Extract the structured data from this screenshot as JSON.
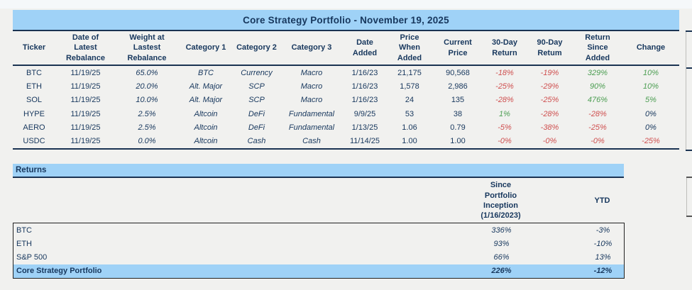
{
  "palette": {
    "page_bg": "#f1f1ef",
    "header_blue": "#9fd2f7",
    "navy_text": "#17375d",
    "negative_red": "#cf5050",
    "positive_green": "#4d9e53",
    "border_dark": "#1a3352",
    "box_border": "#222222"
  },
  "portfolio_table": {
    "title": "Core Strategy Portfolio - November 19, 2025",
    "columns": [
      "Ticker",
      "Date of\nLatest\nRebalance",
      "Weight at\nLastest\nRebalance",
      "Category 1",
      "Category 2",
      "Category 3",
      "Date\nAdded",
      "Price\nWhen\nAdded",
      "Current\nPrice",
      "30-Day\nReturn",
      "90-Day\nRetum",
      "Return\nSince\nAdded",
      "Change"
    ],
    "rows": [
      {
        "values": [
          "BTC",
          "11/19/25",
          "65.0%",
          "BTC",
          "Currency",
          "Macro",
          "1/16/23",
          "21,175",
          "90,568",
          "-18%",
          "-19%",
          "329%",
          "10%"
        ],
        "tones": [
          "",
          "",
          "",
          "",
          "",
          "",
          "",
          "",
          "",
          "neg",
          "neg",
          "pos",
          "pos"
        ]
      },
      {
        "values": [
          "ETH",
          "11/19/25",
          "20.0%",
          "Alt. Major",
          "SCP",
          "Macro",
          "1/16/23",
          "1,578",
          "2,986",
          "-25%",
          "-29%",
          "90%",
          "10%"
        ],
        "tones": [
          "",
          "",
          "",
          "",
          "",
          "",
          "",
          "",
          "",
          "neg",
          "neg",
          "pos",
          "pos"
        ]
      },
      {
        "values": [
          "SOL",
          "11/19/25",
          "10.0%",
          "Alt. Major",
          "SCP",
          "Macro",
          "1/16/23",
          "24",
          "135",
          "-28%",
          "-25%",
          "476%",
          "5%"
        ],
        "tones": [
          "",
          "",
          "",
          "",
          "",
          "",
          "",
          "",
          "",
          "neg",
          "neg",
          "pos",
          "pos"
        ]
      },
      {
        "values": [
          "HYPE",
          "11/19/25",
          "2.5%",
          "Altcoin",
          "DeFi",
          "Fundamental",
          "9/9/25",
          "53",
          "38",
          "1%",
          "-28%",
          "-28%",
          "0%"
        ],
        "tones": [
          "",
          "",
          "",
          "",
          "",
          "",
          "",
          "",
          "",
          "pos",
          "neg",
          "neg",
          ""
        ]
      },
      {
        "values": [
          "AERO",
          "11/19/25",
          "2.5%",
          "Altcoin",
          "DeFi",
          "Fundamental",
          "1/13/25",
          "1.06",
          "0.79",
          "-5%",
          "-38%",
          "-25%",
          "0%"
        ],
        "tones": [
          "",
          "",
          "",
          "",
          "",
          "",
          "",
          "",
          "",
          "neg",
          "neg",
          "neg",
          ""
        ]
      },
      {
        "values": [
          "USDC",
          "11/19/25",
          "0.0%",
          "Altcoin",
          "Cash",
          "Cash",
          "11/14/25",
          "1.00",
          "1.00",
          "-0%",
          "-0%",
          "-0%",
          "-25%"
        ],
        "tones": [
          "",
          "",
          "",
          "",
          "",
          "",
          "",
          "",
          "",
          "neg",
          "neg",
          "neg",
          "neg"
        ]
      }
    ]
  },
  "returns_section": {
    "bar_label": "Returns",
    "col_headers": {
      "since_inception": "Since\nPortfolio\nInception\n(1/16/2023)",
      "ytd": "YTD"
    },
    "rows": [
      {
        "label": "BTC",
        "since": "336%",
        "ytd": "-3%",
        "highlight": false
      },
      {
        "label": "ETH",
        "since": "93%",
        "ytd": "-10%",
        "highlight": false
      },
      {
        "label": "S&P 500",
        "since": "66%",
        "ytd": "13%",
        "highlight": false
      },
      {
        "label": "Core Strategy Portfolio",
        "since": "226%",
        "ytd": "-12%",
        "highlight": true
      }
    ]
  }
}
